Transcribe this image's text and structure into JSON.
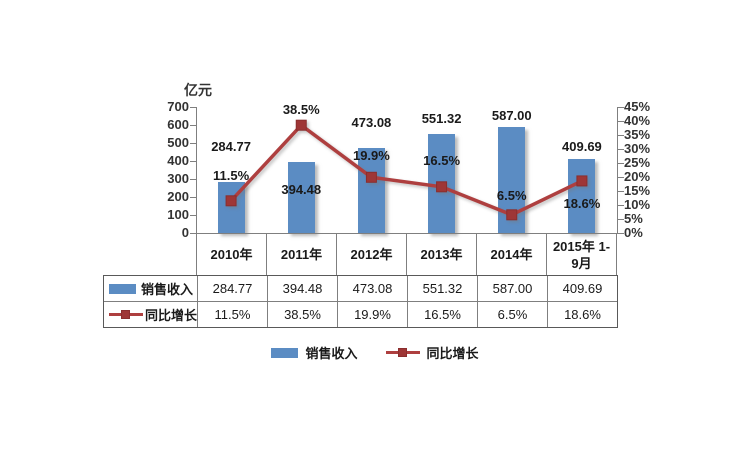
{
  "chart_data": {
    "type": "bar+line",
    "title": "",
    "categories": [
      "2010年",
      "2011年",
      "2012年",
      "2013年",
      "2014年",
      "2015年 1-9月"
    ],
    "series": [
      {
        "name": "销售收入",
        "type": "bar",
        "axis": "left",
        "unit": "亿元",
        "values": [
          284.77,
          394.48,
          473.08,
          551.32,
          587.0,
          409.69
        ],
        "labels": [
          "284.77",
          "394.48",
          "473.08",
          "551.32",
          "587.00",
          "409.69"
        ],
        "color": "#5b8cc3"
      },
      {
        "name": "同比增长",
        "type": "line",
        "axis": "right",
        "unit": "%",
        "values": [
          11.5,
          38.5,
          19.9,
          16.5,
          6.5,
          18.6
        ],
        "labels": [
          "11.5%",
          "38.5%",
          "19.9%",
          "16.5%",
          "6.5%",
          "18.6%"
        ],
        "color": "#ae3f3f"
      }
    ],
    "left_axis": {
      "title": "亿元",
      "min": 0,
      "max": 700,
      "step": 100,
      "tick_labels": [
        "0",
        "100",
        "200",
        "300",
        "400",
        "500",
        "600",
        "700"
      ]
    },
    "right_axis": {
      "min": 0,
      "max": 45,
      "step": 5,
      "tick_labels": [
        "0%",
        "5%",
        "10%",
        "15%",
        "20%",
        "25%",
        "30%",
        "35%",
        "40%",
        "45%"
      ]
    },
    "grid": false,
    "legend_position": "bottom"
  },
  "table": {
    "header": [
      "2010年",
      "2011年",
      "2012年",
      "2013年",
      "2014年",
      "2015年 1-9月"
    ],
    "rows": [
      {
        "label": "销售收入",
        "swatch": "bar",
        "values": [
          "284.77",
          "394.48",
          "473.08",
          "551.32",
          "587.00",
          "409.69"
        ]
      },
      {
        "label": "同比增长",
        "swatch": "line",
        "values": [
          "11.5%",
          "38.5%",
          "19.9%",
          "16.5%",
          "6.5%",
          "18.6%"
        ]
      }
    ]
  },
  "legend": {
    "items": [
      {
        "label": "销售收入",
        "swatch": "bar"
      },
      {
        "label": "同比增长",
        "swatch": "line"
      }
    ]
  },
  "colors": {
    "bar": "#5b8cc3",
    "line": "#ae3f3f",
    "marker": "#9e3636",
    "axis": "#7f7f7f",
    "text": "#1a1a1a"
  }
}
